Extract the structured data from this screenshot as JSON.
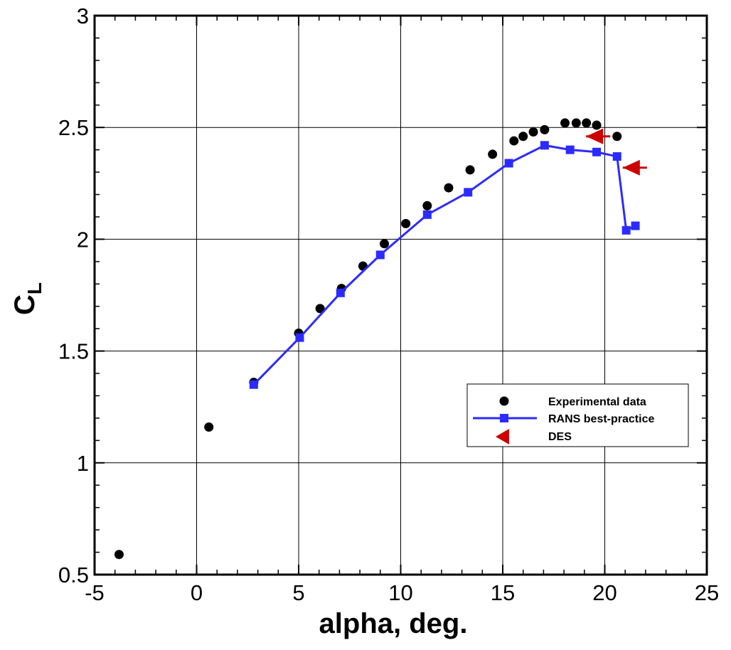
{
  "chart_data": {
    "type": "line",
    "title": "",
    "xlabel": "alpha, deg.",
    "ylabel": "C",
    "ylabel_sub": "L",
    "xlim": [
      -5,
      25
    ],
    "ylim": [
      0.5,
      3
    ],
    "xticks": [
      -5,
      0,
      5,
      10,
      15,
      20,
      25
    ],
    "yticks": [
      0.5,
      1,
      1.5,
      2,
      2.5,
      3
    ],
    "xtick_labels": [
      "-5",
      "0",
      "5",
      "10",
      "15",
      "20",
      "25"
    ],
    "ytick_labels": [
      "0.5",
      "1",
      "1.5",
      "2",
      "2.5",
      "3"
    ],
    "grid": true,
    "legend_position": "lower-right",
    "series": [
      {
        "name": "Experimental data",
        "marker": "circle",
        "line": false,
        "color": "#000000",
        "x": [
          -3.8,
          0.6,
          2.8,
          5.0,
          6.05,
          7.1,
          8.15,
          9.2,
          10.25,
          11.3,
          12.35,
          13.4,
          14.5,
          15.55,
          16.0,
          16.5,
          17.05,
          18.05,
          18.6,
          19.1,
          19.6,
          20.6
        ],
        "y": [
          0.59,
          1.16,
          1.36,
          1.58,
          1.69,
          1.78,
          1.88,
          1.98,
          2.07,
          2.15,
          2.23,
          2.31,
          2.38,
          2.44,
          2.46,
          2.48,
          2.49,
          2.52,
          2.52,
          2.52,
          2.51,
          2.46
        ]
      },
      {
        "name": "RANS best-practice",
        "marker": "square",
        "line": true,
        "color": "#2b2bff",
        "x": [
          2.8,
          5.05,
          7.05,
          9.0,
          11.3,
          13.3,
          15.3,
          17.05,
          18.3,
          19.6,
          20.6,
          21.05,
          21.5
        ],
        "y": [
          1.35,
          1.56,
          1.76,
          1.93,
          2.11,
          2.21,
          2.34,
          2.42,
          2.4,
          2.39,
          2.37,
          2.04,
          2.06
        ]
      },
      {
        "name": "DES",
        "marker": "left-triangle",
        "line": false,
        "color": "#cc0000",
        "x": [
          19.5,
          21.3
        ],
        "y": [
          2.46,
          2.32
        ]
      }
    ]
  }
}
